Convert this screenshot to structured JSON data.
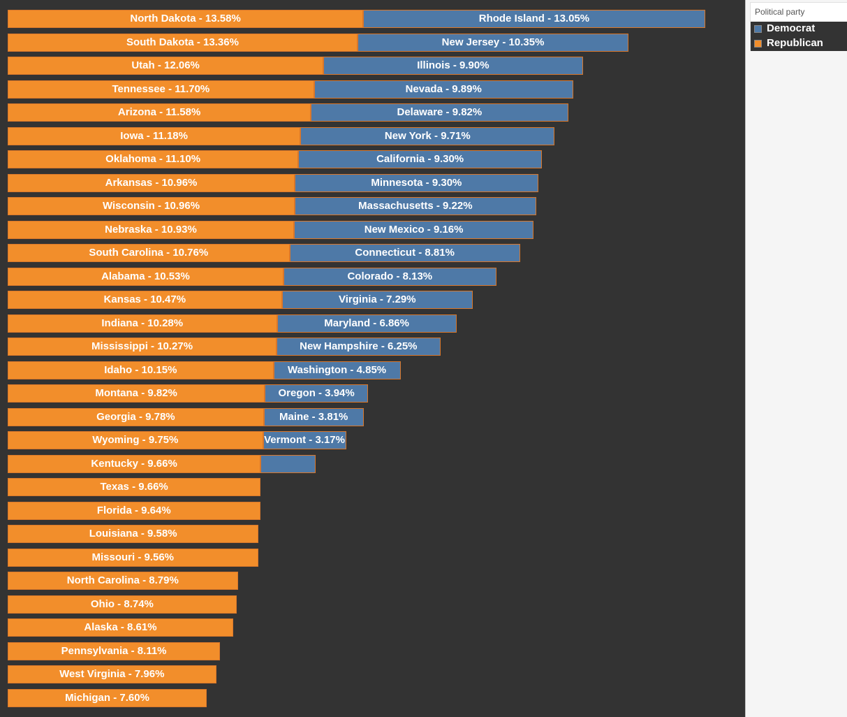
{
  "legend": {
    "title": "Political party",
    "items": [
      {
        "label": "Democrat",
        "color": "#4e79a7"
      },
      {
        "label": "Republican",
        "color": "#f28e2b"
      }
    ]
  },
  "colors": {
    "republican": "#f28e2b",
    "democrat": "#4e79a7",
    "background": "#333333"
  },
  "chart_data": {
    "type": "bar",
    "orientation": "horizontal",
    "stacked": true,
    "xlim": [
      0,
      27
    ],
    "series": [
      {
        "name": "Republican",
        "color": "#f28e2b",
        "values": [
          {
            "state": "North Dakota",
            "value": 13.58,
            "label": "North Dakota - 13.58%"
          },
          {
            "state": "South Dakota",
            "value": 13.36,
            "label": "South Dakota - 13.36%"
          },
          {
            "state": "Utah",
            "value": 12.06,
            "label": "Utah - 12.06%"
          },
          {
            "state": "Tennessee",
            "value": 11.7,
            "label": "Tennessee - 11.70%"
          },
          {
            "state": "Arizona",
            "value": 11.58,
            "label": "Arizona - 11.58%"
          },
          {
            "state": "Iowa",
            "value": 11.18,
            "label": "Iowa - 11.18%"
          },
          {
            "state": "Oklahoma",
            "value": 11.1,
            "label": "Oklahoma - 11.10%"
          },
          {
            "state": "Arkansas",
            "value": 10.96,
            "label": "Arkansas - 10.96%"
          },
          {
            "state": "Wisconsin",
            "value": 10.96,
            "label": "Wisconsin - 10.96%"
          },
          {
            "state": "Nebraska",
            "value": 10.93,
            "label": "Nebraska - 10.93%"
          },
          {
            "state": "South Carolina",
            "value": 10.76,
            "label": "South Carolina - 10.76%"
          },
          {
            "state": "Alabama",
            "value": 10.53,
            "label": "Alabama - 10.53%"
          },
          {
            "state": "Kansas",
            "value": 10.47,
            "label": "Kansas - 10.47%"
          },
          {
            "state": "Indiana",
            "value": 10.28,
            "label": "Indiana - 10.28%"
          },
          {
            "state": "Mississippi",
            "value": 10.27,
            "label": "Mississippi - 10.27%"
          },
          {
            "state": "Idaho",
            "value": 10.15,
            "label": "Idaho - 10.15%"
          },
          {
            "state": "Montana",
            "value": 9.82,
            "label": "Montana - 9.82%"
          },
          {
            "state": "Georgia",
            "value": 9.78,
            "label": "Georgia - 9.78%"
          },
          {
            "state": "Wyoming",
            "value": 9.75,
            "label": "Wyoming - 9.75%"
          },
          {
            "state": "Kentucky",
            "value": 9.66,
            "label": "Kentucky - 9.66%"
          },
          {
            "state": "Texas",
            "value": 9.66,
            "label": "Texas - 9.66%"
          },
          {
            "state": "Florida",
            "value": 9.64,
            "label": "Florida - 9.64%"
          },
          {
            "state": "Louisiana",
            "value": 9.58,
            "label": "Louisiana - 9.58%"
          },
          {
            "state": "Missouri",
            "value": 9.56,
            "label": "Missouri - 9.56%"
          },
          {
            "state": "North Carolina",
            "value": 8.79,
            "label": "North Carolina - 8.79%"
          },
          {
            "state": "Ohio",
            "value": 8.74,
            "label": "Ohio - 8.74%"
          },
          {
            "state": "Alaska",
            "value": 8.61,
            "label": "Alaska - 8.61%"
          },
          {
            "state": "Pennsylvania",
            "value": 8.11,
            "label": "Pennsylvania - 8.11%"
          },
          {
            "state": "West Virginia",
            "value": 7.96,
            "label": "West Virginia - 7.96%"
          },
          {
            "state": "Michigan",
            "value": 7.6,
            "label": "Michigan - 7.60%"
          }
        ]
      },
      {
        "name": "Democrat",
        "color": "#4e79a7",
        "values": [
          {
            "state": "Rhode Island",
            "value": 13.05,
            "label": "Rhode Island - 13.05%"
          },
          {
            "state": "New Jersey",
            "value": 10.35,
            "label": "New Jersey - 10.35%"
          },
          {
            "state": "Illinois",
            "value": 9.9,
            "label": "Illinois - 9.90%"
          },
          {
            "state": "Nevada",
            "value": 9.89,
            "label": "Nevada - 9.89%"
          },
          {
            "state": "Delaware",
            "value": 9.82,
            "label": "Delaware - 9.82%"
          },
          {
            "state": "New York",
            "value": 9.71,
            "label": "New York - 9.71%"
          },
          {
            "state": "California",
            "value": 9.3,
            "label": "California - 9.30%"
          },
          {
            "state": "Minnesota",
            "value": 9.3,
            "label": "Minnesota - 9.30%"
          },
          {
            "state": "Massachusetts",
            "value": 9.22,
            "label": "Massachusetts - 9.22%"
          },
          {
            "state": "New Mexico",
            "value": 9.16,
            "label": "New Mexico - 9.16%"
          },
          {
            "state": "Connecticut",
            "value": 8.81,
            "label": "Connecticut - 8.81%"
          },
          {
            "state": "Colorado",
            "value": 8.13,
            "label": "Colorado - 8.13%"
          },
          {
            "state": "Virginia",
            "value": 7.29,
            "label": "Virginia - 7.29%"
          },
          {
            "state": "Maryland",
            "value": 6.86,
            "label": "Maryland - 6.86%"
          },
          {
            "state": "New Hampshire",
            "value": 6.25,
            "label": "New Hampshire - 6.25%"
          },
          {
            "state": "Washington",
            "value": 4.85,
            "label": "Washington - 4.85%"
          },
          {
            "state": "Oregon",
            "value": 3.94,
            "label": "Oregon - 3.94%"
          },
          {
            "state": "Maine",
            "value": 3.81,
            "label": "Maine - 3.81%"
          },
          {
            "state": "Vermont",
            "value": 3.17,
            "label": "Vermont - 3.17%"
          },
          {
            "state": "",
            "value": 2.1,
            "label": ""
          }
        ]
      }
    ],
    "grid": false,
    "legend_position": "top-right"
  }
}
